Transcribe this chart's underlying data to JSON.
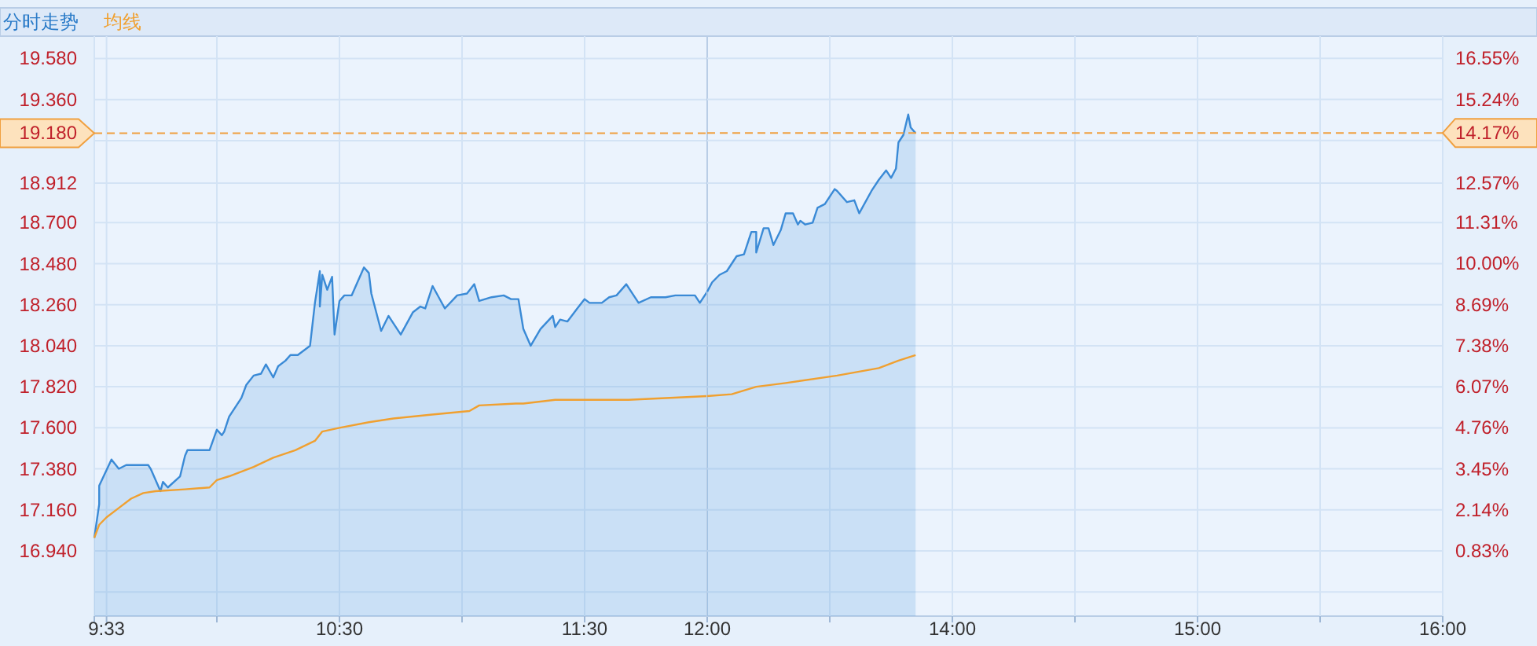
{
  "chart_data": [
    {
      "type": "area",
      "title": "分时走势",
      "legend": "top left",
      "grid": true,
      "xlim": [
        9.5,
        12
      ],
      "ylim": [
        16.59,
        19.7
      ],
      "xticks": [
        {
          "value": 9.5,
          "label": null
        },
        {
          "value": 9.55,
          "label": "9:33"
        },
        {
          "value": 10,
          "label": null
        },
        {
          "value": 10.5,
          "label": "10:30"
        },
        {
          "value": 11,
          "label": null
        },
        {
          "value": 11.5,
          "label": "11:30"
        },
        {
          "value": 12,
          "label": "12:00"
        }
      ],
      "yticks": [
        {
          "value": 16.72,
          "label": null
        },
        {
          "value": 16.94,
          "label": "16.940"
        },
        {
          "value": 17.16,
          "label": "17.160"
        },
        {
          "value": 17.38,
          "label": "17.380"
        },
        {
          "value": 17.6,
          "label": "17.600"
        },
        {
          "value": 17.82,
          "label": "17.820"
        },
        {
          "value": 18.04,
          "label": "18.040"
        },
        {
          "value": 18.26,
          "label": "18.260"
        },
        {
          "value": 18.48,
          "label": "18.480"
        },
        {
          "value": 18.7,
          "label": "18.700"
        },
        {
          "value": 18.912,
          "label": "18.912"
        },
        {
          "value": 19.14,
          "label": null
        },
        {
          "value": 19.36,
          "label": "19.360"
        },
        {
          "value": 19.58,
          "label": "19.580"
        }
      ],
      "ref_lines": [
        {
          "axis": "y",
          "value": 19.18,
          "label": "19.180",
          "color": "#f0a040",
          "line_style": "dashed"
        }
      ],
      "series": [
        {
          "color": "#3a8ad6",
          "x": [
            9.5,
            9.52,
            9.52,
            9.57,
            9.6,
            9.63,
            9.72,
            9.73,
            9.77,
            9.78,
            9.8,
            9.85,
            9.87,
            9.88,
            9.97,
            10,
            10.02,
            10.03,
            10.05,
            10.1,
            10.12,
            10.15,
            10.18,
            10.2,
            10.23,
            10.25,
            10.28,
            10.3,
            10.33,
            10.38,
            10.4,
            10.42,
            10.42,
            10.43,
            10.45,
            10.47,
            10.48,
            10.5,
            10.52,
            10.55,
            10.57,
            10.6,
            10.62,
            10.63,
            10.67,
            10.7,
            10.75,
            10.8,
            10.83,
            10.85,
            10.88,
            10.93,
            10.98,
            11.02,
            11.05,
            11.07,
            11.12,
            11.17,
            11.2,
            11.23,
            11.25,
            11.28,
            11.32,
            11.37,
            11.38,
            11.4,
            11.43,
            11.47,
            11.5,
            11.52,
            11.57,
            11.6,
            11.63,
            11.67,
            11.72,
            11.77,
            11.83,
            11.87,
            11.95,
            11.97,
            11.98,
            12
          ],
          "values": [
            17.01,
            17.19,
            17.29,
            17.43,
            17.38,
            17.4,
            17.4,
            17.38,
            17.26,
            17.31,
            17.28,
            17.34,
            17.45,
            17.48,
            17.48,
            17.59,
            17.56,
            17.58,
            17.66,
            17.76,
            17.83,
            17.88,
            17.89,
            17.94,
            17.87,
            17.93,
            17.96,
            17.99,
            17.99,
            18.04,
            18.27,
            18.44,
            18.25,
            18.42,
            18.34,
            18.41,
            18.1,
            18.28,
            18.31,
            18.31,
            18.37,
            18.46,
            18.43,
            18.32,
            18.12,
            18.2,
            18.1,
            18.22,
            18.25,
            18.24,
            18.36,
            18.24,
            18.31,
            18.32,
            18.37,
            18.28,
            18.3,
            18.31,
            18.29,
            18.29,
            18.13,
            18.04,
            18.13,
            18.2,
            18.14,
            18.18,
            18.17,
            18.24,
            18.29,
            18.27,
            18.27,
            18.3,
            18.31,
            18.37,
            18.27,
            18.3,
            18.3,
            18.31,
            18.31,
            18.27,
            18.29,
            18.33
          ]
        },
        {
          "type": "line",
          "name": "均线",
          "color": "#f0a030",
          "x": [
            9.5,
            9.52,
            9.55,
            9.6,
            9.65,
            9.7,
            9.75,
            9.87,
            9.97,
            10,
            10.05,
            10.15,
            10.23,
            10.32,
            10.4,
            10.43,
            10.5,
            10.62,
            10.72,
            10.87,
            11.03,
            11.07,
            11.22,
            11.25,
            11.38,
            11.68,
            12
          ],
          "values": [
            17.01,
            17.08,
            17.12,
            17.17,
            17.22,
            17.25,
            17.26,
            17.27,
            17.28,
            17.32,
            17.34,
            17.39,
            17.44,
            17.48,
            17.53,
            17.58,
            17.6,
            17.63,
            17.65,
            17.67,
            17.69,
            17.72,
            17.73,
            17.73,
            17.75,
            17.75,
            17.77
          ]
        }
      ]
    },
    {
      "type": "area",
      "grid": true,
      "xlim": [
        13,
        16
      ],
      "ylim": [
        16.59,
        19.7
      ],
      "y2lim": [
        -1.25,
        17.26
      ],
      "xticks": [
        {
          "value": 13.5,
          "label": null
        },
        {
          "value": 14,
          "label": "14:00"
        },
        {
          "value": 14.5,
          "label": null
        },
        {
          "value": 15,
          "label": "15:00"
        },
        {
          "value": 15.5,
          "label": null
        },
        {
          "value": 16,
          "label": "16:00"
        }
      ],
      "y2ticks": [
        {
          "value": -0.48,
          "label": null
        },
        {
          "value": 0.83,
          "label": "0.83%"
        },
        {
          "value": 2.14,
          "label": "2.14%"
        },
        {
          "value": 3.45,
          "label": "3.45%"
        },
        {
          "value": 4.76,
          "label": "4.76%"
        },
        {
          "value": 6.07,
          "label": "6.07%"
        },
        {
          "value": 7.38,
          "label": "7.38%"
        },
        {
          "value": 8.69,
          "label": "8.69%"
        },
        {
          "value": 10,
          "label": "10.00%"
        },
        {
          "value": 11.31,
          "label": "11.31%"
        },
        {
          "value": 12.57,
          "label": "12.57%"
        },
        {
          "value": 13.93,
          "label": null
        },
        {
          "value": 15.24,
          "label": "15.24%"
        },
        {
          "value": 16.55,
          "label": "16.55%"
        }
      ],
      "ref_lines": [
        {
          "axis": "y2",
          "value": 14.17,
          "label": "14.17%",
          "color": "#f0a040",
          "line_style": "dashed"
        }
      ],
      "series": [
        {
          "color": "#3a8ad6",
          "x": [
            13,
            13.02,
            13.05,
            13.08,
            13.12,
            13.15,
            13.18,
            13.2,
            13.2,
            13.23,
            13.25,
            13.27,
            13.3,
            13.32,
            13.35,
            13.37,
            13.38,
            13.4,
            13.43,
            13.45,
            13.48,
            13.52,
            13.53,
            13.57,
            13.6,
            13.62,
            13.67,
            13.7,
            13.73,
            13.75,
            13.77,
            13.78,
            13.8,
            13.82,
            13.83,
            13.85
          ],
          "values": [
            18.33,
            18.38,
            18.42,
            18.44,
            18.52,
            18.53,
            18.65,
            18.65,
            18.54,
            18.67,
            18.67,
            18.58,
            18.66,
            18.75,
            18.75,
            18.69,
            18.71,
            18.69,
            18.7,
            18.78,
            18.8,
            18.88,
            18.87,
            18.81,
            18.82,
            18.75,
            18.87,
            18.93,
            18.98,
            18.94,
            18.99,
            19.13,
            19.17,
            19.28,
            19.21,
            19.18
          ]
        },
        {
          "type": "line",
          "color": "#f0a030",
          "x": [
            13,
            13.1,
            13.2,
            13.32,
            13.53,
            13.7,
            13.78,
            13.85
          ],
          "values": [
            17.77,
            17.78,
            17.82,
            17.84,
            17.88,
            17.92,
            17.96,
            17.99
          ]
        }
      ]
    }
  ]
}
